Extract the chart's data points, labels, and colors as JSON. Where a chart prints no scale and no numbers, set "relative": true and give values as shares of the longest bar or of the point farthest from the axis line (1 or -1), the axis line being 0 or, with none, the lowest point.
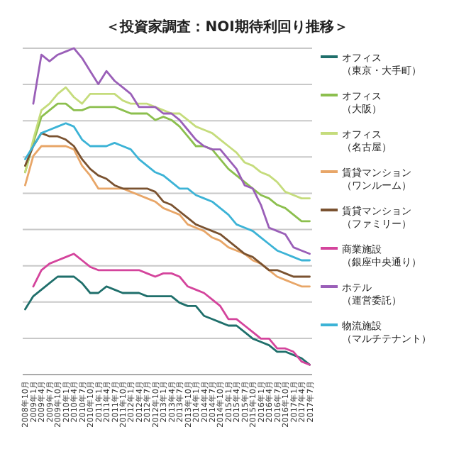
{
  "chart_data": {
    "type": "line",
    "title": "＜投資家調査：NOI期待利回り推移＞",
    "relative": true,
    "grid": "y",
    "legend": "right",
    "line_style": "solid",
    "marker": "none",
    "categories": [
      "2008年10月",
      "2009年1月",
      "2009年4月",
      "2009年7月",
      "2009年10月",
      "2010年1月",
      "2010年4月",
      "2010年7月",
      "2010年10月",
      "2011年1月",
      "2011年4月",
      "2011年7月",
      "2011年10月",
      "2012年1月",
      "2012年4月",
      "2012年7月",
      "2012年10月",
      "2013年1月",
      "2013年4月",
      "2013年7月",
      "2013年10月",
      "2014年1月",
      "2014年4月",
      "2014年7月",
      "2014年10月",
      "2015年1月",
      "2015年4月",
      "2015年7月",
      "2015年10月",
      "2016年1月",
      "2016年4月",
      "2016年7月",
      "2016年10月",
      "2017年1月",
      "2017年4月",
      "2017年7月"
    ],
    "series": [
      {
        "name": "オフィス（東京・大手町）",
        "color": "#1f6f6b",
        "values": [
          0.2,
          0.24,
          0.26,
          0.28,
          0.3,
          0.3,
          0.3,
          0.28,
          0.25,
          0.25,
          0.27,
          0.26,
          0.25,
          0.25,
          0.25,
          0.24,
          0.24,
          0.24,
          0.24,
          0.22,
          0.21,
          0.21,
          0.18,
          0.17,
          0.16,
          0.15,
          0.15,
          0.13,
          0.11,
          0.1,
          0.09,
          0.07,
          0.07,
          0.06,
          0.05,
          0.03
        ]
      },
      {
        "name": "オフィス（大阪）",
        "color": "#8cbf4e",
        "values": [
          0.62,
          0.71,
          0.79,
          0.81,
          0.83,
          0.83,
          0.81,
          0.81,
          0.82,
          0.82,
          0.82,
          0.82,
          0.81,
          0.8,
          0.8,
          0.8,
          0.78,
          0.79,
          0.78,
          0.76,
          0.73,
          0.7,
          0.7,
          0.69,
          0.66,
          0.63,
          0.61,
          0.59,
          0.57,
          0.55,
          0.54,
          0.52,
          0.51,
          0.49,
          0.47,
          0.47
        ]
      },
      {
        "name": "オフィス（名古屋）",
        "color": "#c5dc7c",
        "values": [
          0.62,
          0.72,
          0.81,
          0.83,
          0.86,
          0.88,
          0.85,
          0.83,
          0.86,
          0.86,
          0.86,
          0.86,
          0.84,
          0.83,
          0.83,
          0.83,
          0.82,
          0.81,
          0.8,
          0.8,
          0.78,
          0.76,
          0.75,
          0.74,
          0.72,
          0.7,
          0.68,
          0.65,
          0.64,
          0.62,
          0.61,
          0.59,
          0.56,
          0.55,
          0.54,
          0.54
        ]
      },
      {
        "name": "賃貸マンション（ワンルーム）",
        "color": "#e8a668",
        "values": [
          0.58,
          0.67,
          0.7,
          0.7,
          0.7,
          0.7,
          0.69,
          0.64,
          0.61,
          0.57,
          0.57,
          0.57,
          0.57,
          0.56,
          0.55,
          0.54,
          0.53,
          0.51,
          0.5,
          0.49,
          0.46,
          0.45,
          0.44,
          0.42,
          0.41,
          0.39,
          0.38,
          0.37,
          0.35,
          0.34,
          0.32,
          0.3,
          0.29,
          0.28,
          0.27,
          0.27
        ]
      },
      {
        "name": "賃貸マンション（ファミリー）",
        "color": "#7a5230",
        "values": [
          0.64,
          0.7,
          0.74,
          0.73,
          0.73,
          0.72,
          0.7,
          0.66,
          0.63,
          0.61,
          0.6,
          0.58,
          0.57,
          0.57,
          0.57,
          0.57,
          0.56,
          0.53,
          0.52,
          0.5,
          0.48,
          0.46,
          0.45,
          0.44,
          0.43,
          0.41,
          0.39,
          0.37,
          0.36,
          0.34,
          0.32,
          0.32,
          0.31,
          0.3,
          0.3,
          0.3
        ]
      },
      {
        "name": "商業施設（銀座中央通り）",
        "color": "#d4449c",
        "values": [
          null,
          0.27,
          0.32,
          0.34,
          0.35,
          0.36,
          0.37,
          0.35,
          0.33,
          0.32,
          0.32,
          0.32,
          0.32,
          0.32,
          0.32,
          0.31,
          0.3,
          0.31,
          0.31,
          0.3,
          0.27,
          0.26,
          0.25,
          0.23,
          0.21,
          0.17,
          0.17,
          0.15,
          0.13,
          0.11,
          0.11,
          0.08,
          0.08,
          0.07,
          0.04,
          0.03
        ]
      },
      {
        "name": "ホテル（運営委託）",
        "color": "#9a5fb8",
        "values": [
          null,
          0.83,
          0.98,
          0.96,
          0.98,
          0.99,
          1,
          0.97,
          0.93,
          0.89,
          0.93,
          0.9,
          0.88,
          0.86,
          0.82,
          0.82,
          0.82,
          0.8,
          0.8,
          0.78,
          0.75,
          0.72,
          0.7,
          0.69,
          0.69,
          0.66,
          0.63,
          0.58,
          0.57,
          0.52,
          0.45,
          0.44,
          0.43,
          0.39,
          0.38,
          0.37
        ]
      },
      {
        "name": "物流施設（マルチテナント）",
        "color": "#3cb3d6",
        "values": [
          0.66,
          0.7,
          0.74,
          0.75,
          0.76,
          0.77,
          0.76,
          0.72,
          0.7,
          0.7,
          0.7,
          0.71,
          0.7,
          0.69,
          0.66,
          0.64,
          0.62,
          0.61,
          0.59,
          0.57,
          0.57,
          0.55,
          0.54,
          0.53,
          0.51,
          0.49,
          0.46,
          0.45,
          0.44,
          0.42,
          0.4,
          0.38,
          0.37,
          0.36,
          0.35,
          0.35
        ]
      }
    ]
  }
}
